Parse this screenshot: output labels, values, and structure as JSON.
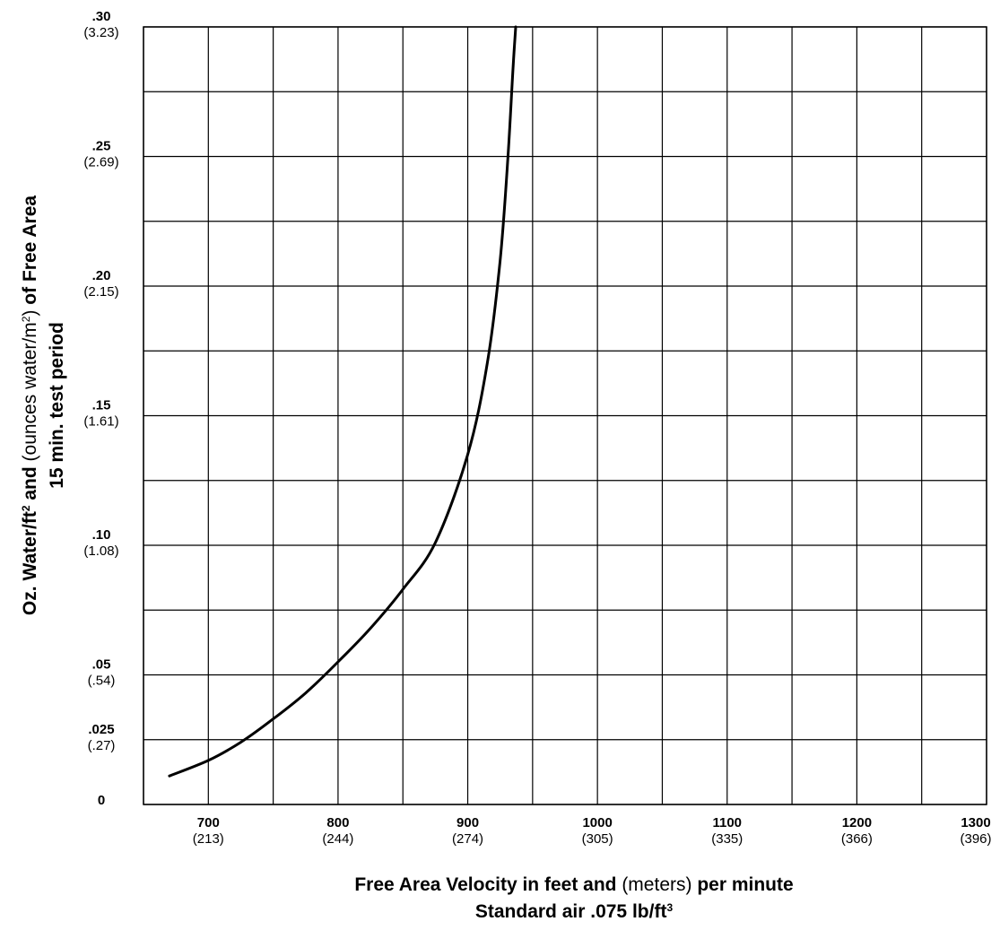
{
  "chart_data": {
    "type": "line",
    "grid": true,
    "legend": "none",
    "xlim": [
      650,
      1300
    ],
    "ylim": [
      0,
      0.3
    ],
    "x_ticks": [
      {
        "value": 700,
        "label": "700",
        "sublabel": "(213)"
      },
      {
        "value": 800,
        "label": "800",
        "sublabel": "(244)"
      },
      {
        "value": 900,
        "label": "900",
        "sublabel": "(274)"
      },
      {
        "value": 1000,
        "label": "1000",
        "sublabel": "(305)"
      },
      {
        "value": 1100,
        "label": "1100",
        "sublabel": "(335)"
      },
      {
        "value": 1200,
        "label": "1200",
        "sublabel": "(366)"
      },
      {
        "value": 1300,
        "label": "1300",
        "sublabel": "(396)"
      }
    ],
    "y_ticks": [
      {
        "value": 0.3,
        "label": ".30",
        "sublabel": "(3.23)"
      },
      {
        "value": 0.25,
        "label": ".25",
        "sublabel": "(2.69)"
      },
      {
        "value": 0.2,
        "label": ".20",
        "sublabel": "(2.15)"
      },
      {
        "value": 0.15,
        "label": ".15",
        "sublabel": "(1.61)"
      },
      {
        "value": 0.1,
        "label": ".10",
        "sublabel": "(1.08)"
      },
      {
        "value": 0.05,
        "label": ".05",
        "sublabel": "(.54)"
      },
      {
        "value": 0.025,
        "label": ".025",
        "sublabel": "(.27)"
      },
      {
        "value": 0,
        "label": "0",
        "sublabel": ""
      }
    ],
    "x_gridlines": [
      650,
      700,
      750,
      800,
      850,
      900,
      950,
      1000,
      1050,
      1100,
      1150,
      1200,
      1250,
      1300
    ],
    "y_gridlines": [
      0,
      0.025,
      0.05,
      0.075,
      0.1,
      0.125,
      0.15,
      0.175,
      0.2,
      0.225,
      0.25,
      0.275,
      0.3
    ],
    "series": [
      {
        "color": "#000000",
        "points": [
          [
            670,
            0.011
          ],
          [
            700,
            0.017
          ],
          [
            725,
            0.024
          ],
          [
            750,
            0.033
          ],
          [
            775,
            0.043
          ],
          [
            800,
            0.055
          ],
          [
            825,
            0.068
          ],
          [
            850,
            0.083
          ],
          [
            875,
            0.101
          ],
          [
            900,
            0.135
          ],
          [
            915,
            0.17
          ],
          [
            925,
            0.21
          ],
          [
            931,
            0.25
          ],
          [
            935,
            0.285
          ],
          [
            937,
            0.3
          ]
        ]
      }
    ],
    "xlabel": {
      "line1": [
        {
          "text": "Free Area Velocity in feet and ",
          "weight": "bold"
        },
        {
          "text": "(meters)",
          "weight": "normal"
        },
        {
          "text": " per minute",
          "weight": "bold"
        }
      ],
      "line2": [
        {
          "text": "Standard air .075 lb/ft",
          "weight": "bold"
        },
        {
          "text": "3",
          "weight": "bold",
          "sup": true
        }
      ]
    },
    "ylabel": {
      "line1": [
        {
          "text": "Oz. Water/ft",
          "weight": "bold"
        },
        {
          "text": "2",
          "weight": "bold",
          "sup": true
        },
        {
          "text": " and ",
          "weight": "bold"
        },
        {
          "text": "(ounces water/m",
          "weight": "normal"
        },
        {
          "text": "2",
          "weight": "normal",
          "sup": true
        },
        {
          "text": ")",
          "weight": "normal"
        },
        {
          "text": " of Free Area",
          "weight": "bold"
        }
      ],
      "line2": [
        {
          "text": "15 min. test period",
          "weight": "bold"
        }
      ]
    }
  }
}
